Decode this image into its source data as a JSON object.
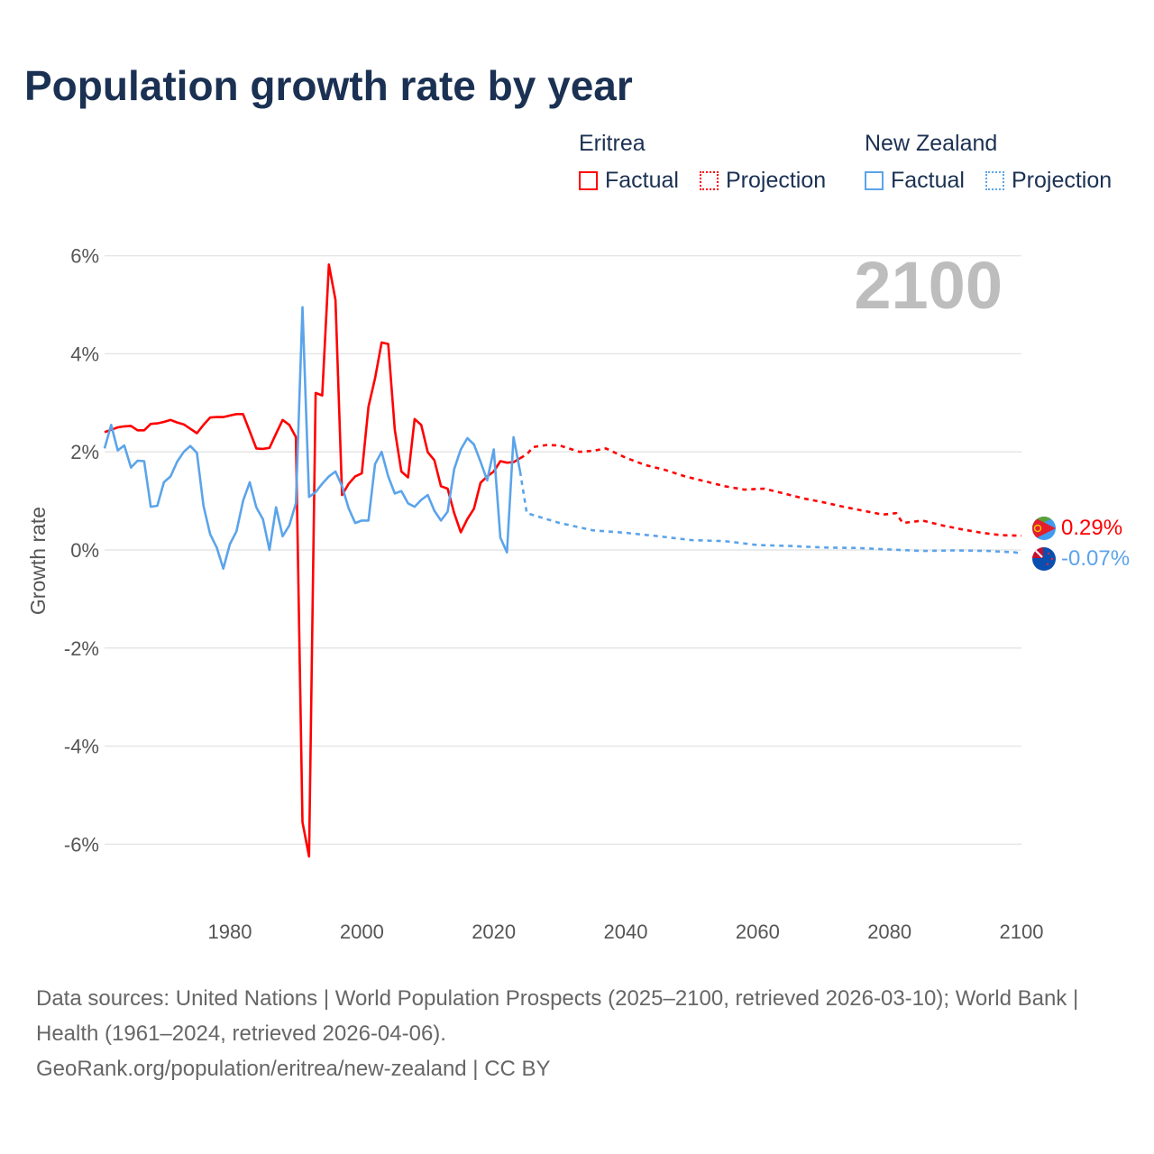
{
  "title": "Population growth rate by year",
  "legend": {
    "groups": [
      {
        "name": "Eritrea",
        "color": "#ff0000",
        "factual": "Factual",
        "projection": "Projection"
      },
      {
        "name": "New Zealand",
        "color": "#5ba4ea",
        "factual": "Factual",
        "projection": "Projection"
      }
    ]
  },
  "year_label": "2100",
  "end_labels": {
    "eritrea": "0.29%",
    "new_zealand": "-0.07%"
  },
  "footer": {
    "sources": "Data sources: United Nations | World Population Prospects (2025–2100, retrieved 2026-03-10); World Bank | Health (1961–2024, retrieved 2026-04-06).",
    "credit": "GeoRank.org/population/eritrea/new-zealand | CC BY"
  },
  "chart_data": {
    "type": "line",
    "title": "Population growth rate by year",
    "xlabel": "",
    "ylabel": "Growth rate",
    "xlim": [
      1961,
      2100
    ],
    "ylim": [
      -7,
      6.5
    ],
    "x_ticks": [
      "1980",
      "2000",
      "2020",
      "2040",
      "2060",
      "2080",
      "2100"
    ],
    "y_ticks": [
      "6%",
      "4%",
      "2%",
      "0%",
      "-2%",
      "-4%",
      "-6%"
    ],
    "grid": true,
    "series": [
      {
        "name": "Eritrea – Factual",
        "color": "#ff0000",
        "style": "solid",
        "x": [
          1961,
          1962,
          1963,
          1964,
          1965,
          1966,
          1967,
          1968,
          1969,
          1970,
          1971,
          1972,
          1973,
          1974,
          1975,
          1976,
          1977,
          1978,
          1979,
          1980,
          1981,
          1982,
          1983,
          1984,
          1985,
          1986,
          1987,
          1988,
          1989,
          1990,
          1991,
          1992,
          1993,
          1994,
          1995,
          1996,
          1997,
          1998,
          1999,
          2000,
          2001,
          2002,
          2003,
          2004,
          2005,
          2006,
          2007,
          2008,
          2009,
          2010,
          2011,
          2012,
          2013,
          2014,
          2015,
          2016,
          2017,
          2018,
          2019,
          2020,
          2021,
          2022,
          2023,
          2024
        ],
        "y": [
          2.4,
          2.45,
          2.5,
          2.52,
          2.53,
          2.44,
          2.44,
          2.57,
          2.58,
          2.61,
          2.65,
          2.6,
          2.56,
          2.47,
          2.38,
          2.55,
          2.7,
          2.71,
          2.71,
          2.74,
          2.77,
          2.77,
          2.42,
          2.07,
          2.06,
          2.08,
          2.37,
          2.65,
          2.55,
          2.3,
          -5.55,
          -6.25,
          3.2,
          3.15,
          5.82,
          5.1,
          1.12,
          1.35,
          1.5,
          1.56,
          2.92,
          3.5,
          4.23,
          4.2,
          2.45,
          1.6,
          1.48,
          2.67,
          2.55,
          1.99,
          1.83,
          1.3,
          1.25,
          0.75,
          0.36,
          0.63,
          0.84,
          1.37,
          1.5,
          1.6,
          1.81,
          1.78,
          1.79,
          1.87
        ]
      },
      {
        "name": "Eritrea – Projection",
        "color": "#ff0000",
        "style": "dotted",
        "x": [
          2024,
          2025,
          2026,
          2028,
          2030,
          2033,
          2035,
          2037,
          2040,
          2043,
          2046,
          2049,
          2052,
          2055,
          2058,
          2061,
          2064,
          2067,
          2070,
          2073,
          2076,
          2079,
          2081,
          2082,
          2085,
          2088,
          2091,
          2094,
          2097,
          2100
        ],
        "y": [
          1.87,
          1.95,
          2.1,
          2.14,
          2.13,
          2.0,
          2.02,
          2.07,
          1.88,
          1.73,
          1.63,
          1.5,
          1.4,
          1.3,
          1.23,
          1.25,
          1.15,
          1.05,
          0.97,
          0.88,
          0.8,
          0.72,
          0.75,
          0.55,
          0.6,
          0.5,
          0.42,
          0.35,
          0.3,
          0.29
        ]
      },
      {
        "name": "New Zealand – Factual",
        "color": "#5ba4ea",
        "style": "solid",
        "x": [
          1961,
          1962,
          1963,
          1964,
          1965,
          1966,
          1967,
          1968,
          1969,
          1970,
          1971,
          1972,
          1973,
          1974,
          1975,
          1976,
          1977,
          1978,
          1979,
          1980,
          1981,
          1982,
          1983,
          1984,
          1985,
          1986,
          1987,
          1988,
          1989,
          1990,
          1991,
          1992,
          1993,
          1994,
          1995,
          1996,
          1997,
          1998,
          1999,
          2000,
          2001,
          2002,
          2003,
          2004,
          2005,
          2006,
          2007,
          2008,
          2009,
          2010,
          2011,
          2012,
          2013,
          2014,
          2015,
          2016,
          2017,
          2018,
          2019,
          2020,
          2021,
          2022,
          2023,
          2024
        ],
        "y": [
          2.07,
          2.55,
          2.03,
          2.13,
          1.68,
          1.82,
          1.81,
          0.88,
          0.9,
          1.38,
          1.5,
          1.8,
          2.0,
          2.12,
          1.98,
          0.9,
          0.32,
          0.05,
          -0.38,
          0.12,
          0.38,
          1.0,
          1.38,
          0.87,
          0.63,
          0.0,
          0.87,
          0.28,
          0.5,
          0.95,
          4.95,
          1.08,
          1.18,
          1.35,
          1.5,
          1.6,
          1.3,
          0.85,
          0.55,
          0.6,
          0.6,
          1.75,
          2.0,
          1.5,
          1.15,
          1.2,
          0.95,
          0.88,
          1.02,
          1.12,
          0.8,
          0.6,
          0.78,
          1.65,
          2.05,
          2.28,
          2.15,
          1.8,
          1.42,
          2.05,
          0.25,
          -0.05,
          2.3,
          1.6
        ]
      },
      {
        "name": "New Zealand – Projection",
        "color": "#5ba4ea",
        "style": "dotted",
        "x": [
          2024,
          2025,
          2030,
          2035,
          2040,
          2045,
          2050,
          2055,
          2060,
          2065,
          2070,
          2075,
          2080,
          2085,
          2090,
          2095,
          2099,
          2100
        ],
        "y": [
          1.6,
          0.75,
          0.55,
          0.4,
          0.35,
          0.28,
          0.2,
          0.18,
          0.1,
          0.08,
          0.05,
          0.04,
          0.01,
          -0.02,
          -0.01,
          -0.02,
          -0.05,
          -0.07
        ]
      }
    ]
  }
}
